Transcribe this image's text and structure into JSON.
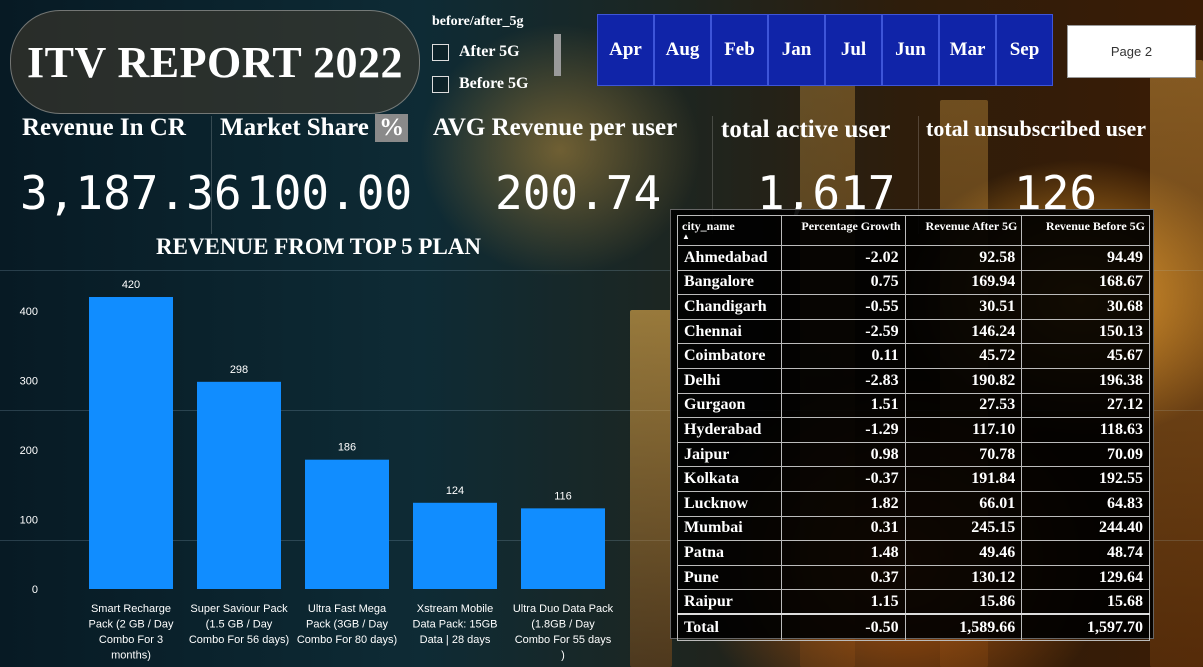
{
  "title": "ITV REPORT 2022",
  "slicer": {
    "header": "before/after_5g",
    "options": [
      "After 5G",
      "Before 5G"
    ]
  },
  "months": [
    "Apr",
    "Aug",
    "Feb",
    "Jan",
    "Jul",
    "Jun",
    "Mar",
    "Sep"
  ],
  "page_button": "Page 2",
  "kpis": {
    "revenue_label": "Revenue In CR",
    "revenue_value": "3,187.36",
    "market_share_label": "Market Share",
    "market_share_symbol": "%",
    "market_share_value": "100.00",
    "arpu_label": "AVG Revenue per user",
    "arpu_value": "200.74",
    "active_label": "total active user",
    "active_value": "1,617",
    "unsub_label": "total unsubscribed user",
    "unsub_value": "126"
  },
  "chart_data": {
    "type": "bar",
    "title": "REVENUE FROM TOP 5 PLAN",
    "categories": [
      [
        "Smart Recharge",
        "Pack (2 GB / Day",
        "Combo For 3",
        "months)"
      ],
      [
        "Super Saviour Pack",
        "(1.5 GB / Day",
        "Combo For 56 days)"
      ],
      [
        "Ultra Fast Mega",
        "Pack (3GB / Day",
        "Combo For 80 days)"
      ],
      [
        "Xstream Mobile",
        "Data Pack: 15GB",
        "Data | 28 days"
      ],
      [
        "Ultra Duo Data Pack",
        "(1.8GB / Day",
        "Combo For 55 days",
        ")"
      ]
    ],
    "values": [
      420,
      298,
      186,
      124,
      116
    ],
    "yticks": [
      0,
      100,
      200,
      300,
      400
    ],
    "ylim": [
      0,
      420
    ],
    "bar_color": "#118dff",
    "grid": false
  },
  "table": {
    "headers": [
      "city_name",
      "Percentage Growth",
      "Revenue After 5G",
      "Revenue Before 5G"
    ],
    "rows": [
      [
        "Ahmedabad",
        "-2.02",
        "92.58",
        "94.49"
      ],
      [
        "Bangalore",
        "0.75",
        "169.94",
        "168.67"
      ],
      [
        "Chandigarh",
        "-0.55",
        "30.51",
        "30.68"
      ],
      [
        "Chennai",
        "-2.59",
        "146.24",
        "150.13"
      ],
      [
        "Coimbatore",
        "0.11",
        "45.72",
        "45.67"
      ],
      [
        "Delhi",
        "-2.83",
        "190.82",
        "196.38"
      ],
      [
        "Gurgaon",
        "1.51",
        "27.53",
        "27.12"
      ],
      [
        "Hyderabad",
        "-1.29",
        "117.10",
        "118.63"
      ],
      [
        "Jaipur",
        "0.98",
        "70.78",
        "70.09"
      ],
      [
        "Kolkata",
        "-0.37",
        "191.84",
        "192.55"
      ],
      [
        "Lucknow",
        "1.82",
        "66.01",
        "64.83"
      ],
      [
        "Mumbai",
        "0.31",
        "245.15",
        "244.40"
      ],
      [
        "Patna",
        "1.48",
        "49.46",
        "48.74"
      ],
      [
        "Pune",
        "0.37",
        "130.12",
        "129.64"
      ],
      [
        "Raipur",
        "1.15",
        "15.86",
        "15.68"
      ]
    ],
    "total": [
      "Total",
      "-0.50",
      "1,589.66",
      "1,597.70"
    ]
  }
}
